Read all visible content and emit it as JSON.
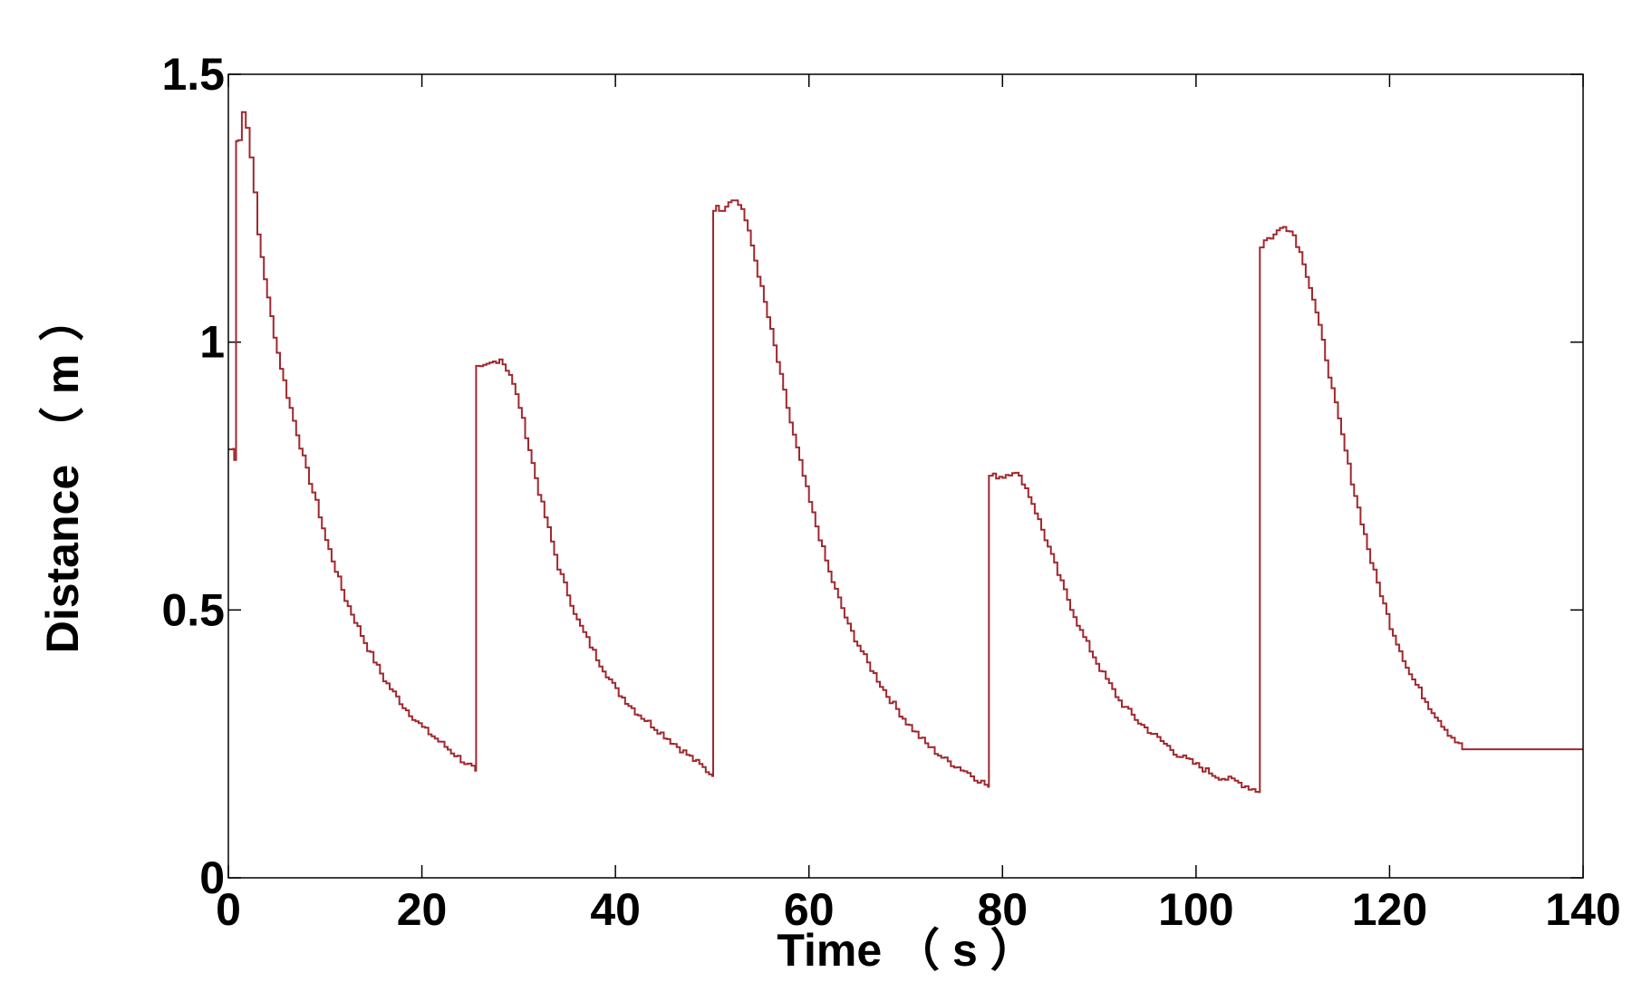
{
  "chart_data": {
    "type": "line",
    "title": "",
    "xlabel": "Time （ s ）",
    "ylabel": "Distance （ m ）",
    "xlim": [
      0,
      140
    ],
    "ylim": [
      0,
      1.5
    ],
    "x_ticks": [
      0,
      20,
      40,
      60,
      80,
      100,
      120,
      140
    ],
    "x_tick_labels": [
      "0",
      "20",
      "40",
      "60",
      "80",
      "100",
      "120",
      "140"
    ],
    "y_ticks": [
      0,
      0.5,
      1,
      1.5
    ],
    "y_tick_labels": [
      "0",
      "0.5",
      "1",
      "1.5"
    ],
    "grid": false,
    "line_color": "#a0282e",
    "series": [
      {
        "x": [
          0,
          0.5,
          0.6,
          0.8,
          1.0,
          1.4,
          1.8,
          2.2,
          3,
          4,
          5,
          6,
          7,
          8,
          9,
          10,
          12,
          14,
          16,
          18,
          20,
          22,
          24,
          25.5,
          25.6,
          26,
          27,
          28,
          29,
          30,
          32,
          34,
          36,
          38,
          40,
          42,
          44,
          46,
          48,
          50.0,
          50.1,
          51,
          52,
          53,
          54,
          56,
          58,
          60,
          62,
          64,
          66,
          68,
          70,
          72,
          74,
          76,
          78.5,
          78.6,
          79,
          80,
          81,
          82,
          83,
          84,
          86,
          88,
          90,
          92,
          94,
          96,
          98,
          100,
          102,
          104,
          106.5,
          106.6,
          107,
          108,
          109,
          110,
          111,
          112,
          113,
          114,
          116,
          118,
          120,
          122,
          124,
          126,
          127.5,
          128,
          130,
          135,
          140
        ],
        "y": [
          0.8,
          0.8,
          0.78,
          1.38,
          1.38,
          1.43,
          1.4,
          1.35,
          1.2,
          1.08,
          0.98,
          0.9,
          0.83,
          0.76,
          0.7,
          0.63,
          0.52,
          0.44,
          0.37,
          0.32,
          0.28,
          0.25,
          0.22,
          0.2,
          0.95,
          0.95,
          0.96,
          0.97,
          0.94,
          0.88,
          0.72,
          0.58,
          0.48,
          0.41,
          0.35,
          0.31,
          0.28,
          0.25,
          0.22,
          0.19,
          1.25,
          1.25,
          1.27,
          1.25,
          1.18,
          1.02,
          0.85,
          0.7,
          0.57,
          0.47,
          0.4,
          0.34,
          0.29,
          0.25,
          0.22,
          0.2,
          0.17,
          0.75,
          0.75,
          0.75,
          0.76,
          0.74,
          0.7,
          0.65,
          0.55,
          0.46,
          0.39,
          0.33,
          0.29,
          0.26,
          0.23,
          0.21,
          0.19,
          0.18,
          0.16,
          1.18,
          1.19,
          1.2,
          1.22,
          1.2,
          1.15,
          1.08,
          1.0,
          0.91,
          0.74,
          0.59,
          0.47,
          0.38,
          0.32,
          0.27,
          0.24,
          0.24,
          0.24,
          0.24,
          0.24
        ]
      }
    ]
  }
}
